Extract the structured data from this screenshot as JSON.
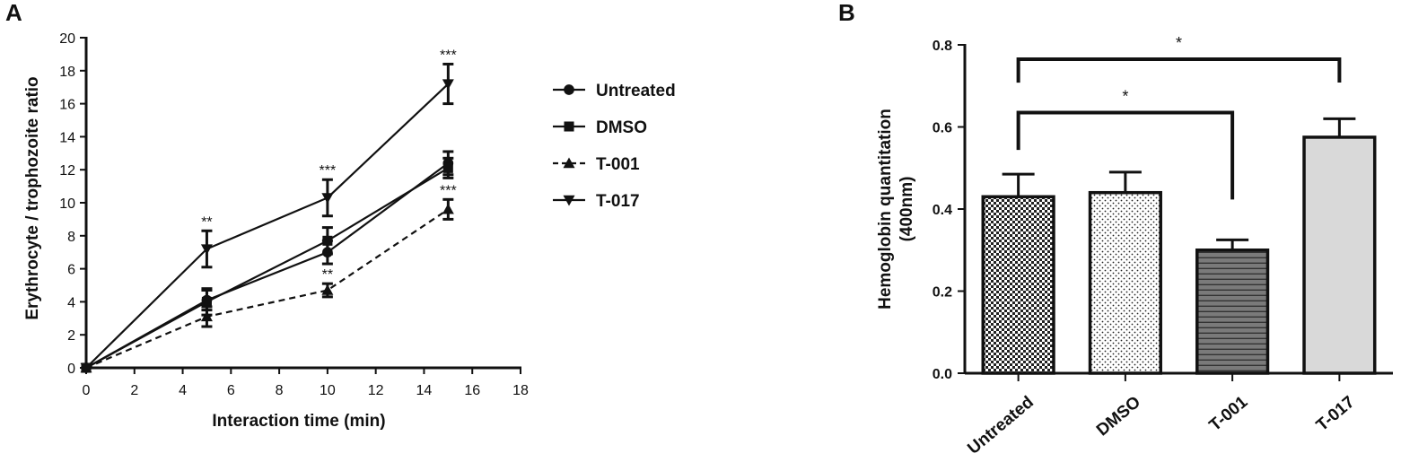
{
  "panels": {
    "a": "A",
    "b": "B"
  },
  "chart_data": [
    {
      "type": "line",
      "xlabel": "Interaction time (min)",
      "ylabel": "Erythrocyte / trophozoite ratio",
      "xlim": [
        0,
        18
      ],
      "ylim": [
        0,
        20
      ],
      "xticks": [
        "0",
        "2",
        "4",
        "6",
        "8",
        "10",
        "12",
        "14",
        "16",
        "18"
      ],
      "yticks": [
        "0",
        "2",
        "4",
        "6",
        "8",
        "10",
        "12",
        "14",
        "16",
        "18",
        "20"
      ],
      "grid": false,
      "legend_position": "right",
      "x": [
        0,
        5,
        10,
        15
      ],
      "series": [
        {
          "name": "Untreated",
          "marker": "circle",
          "line": "solid",
          "values": [
            0,
            4.1,
            7.0,
            12.4
          ],
          "errors": [
            0,
            0.6,
            0.7,
            0.7
          ],
          "labels": [
            "",
            "",
            "",
            ""
          ]
        },
        {
          "name": "DMSO",
          "marker": "square",
          "line": "solid",
          "values": [
            0,
            4.0,
            7.7,
            12.1
          ],
          "errors": [
            0,
            0.8,
            0.8,
            0.6
          ],
          "labels": [
            "",
            "",
            "",
            ""
          ]
        },
        {
          "name": "T-001",
          "marker": "triangle-up",
          "line": "dashed",
          "values": [
            0,
            3.1,
            4.7,
            9.6
          ],
          "errors": [
            0,
            0.6,
            0.4,
            0.6
          ],
          "labels": [
            "",
            "",
            "**",
            "***"
          ]
        },
        {
          "name": "T-017",
          "marker": "triangle-down",
          "line": "solid",
          "values": [
            0,
            7.2,
            10.3,
            17.2
          ],
          "errors": [
            0,
            1.1,
            1.1,
            1.2
          ],
          "labels": [
            "",
            "**",
            "***",
            "***"
          ]
        }
      ]
    },
    {
      "type": "bar",
      "ylabel": "Hemoglobin quantitation (400nm)",
      "ylim": [
        0,
        0.8
      ],
      "yticks": [
        "0.0",
        "0.2",
        "0.4",
        "0.6",
        "0.8"
      ],
      "grid": false,
      "categories": [
        "Untreated",
        "DMSO",
        "T-001",
        "T-017"
      ],
      "values": [
        0.43,
        0.44,
        0.3,
        0.575
      ],
      "errors": [
        0.055,
        0.05,
        0.025,
        0.045
      ],
      "fills": [
        "checkerboard",
        "dots",
        "horizontal-lines",
        "solid-light-gray"
      ],
      "colors": {
        "bar_light": "#d9d9d9",
        "bar_dark": "#7a7a7a",
        "stroke": "#111111"
      },
      "significance": [
        {
          "from": "Untreated",
          "to": "T-017",
          "label": "*"
        },
        {
          "from": "Untreated",
          "to": "T-001",
          "label": "*"
        }
      ]
    }
  ]
}
